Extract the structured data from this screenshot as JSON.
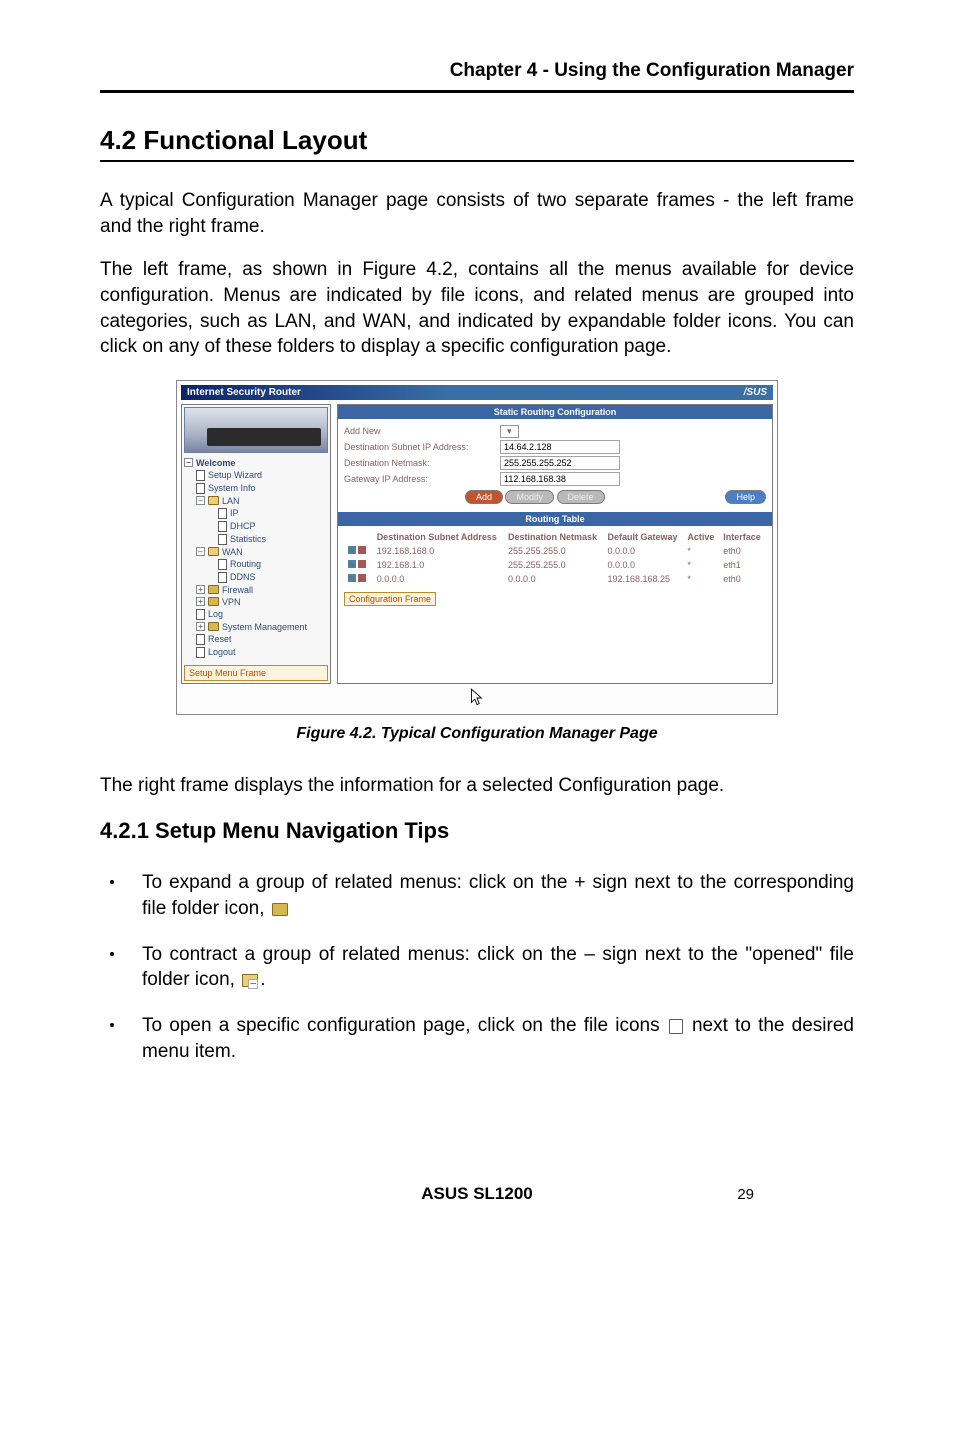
{
  "chapter_header": "Chapter 4 - Using the Configuration Manager",
  "section_title": "4.2 Functional Layout",
  "paragraph1": "A typical Configuration Manager page consists of two separate frames - the left frame and the right frame.",
  "paragraph2": "The left frame, as shown in Figure 4.2, contains all the menus available for device configuration. Menus are indicated by file icons, and related menus are grouped into categories, such as LAN, and WAN, and indicated by expandable folder icons. You can click on any of these folders to display a specific configuration page.",
  "figure": {
    "titlebar": "Internet Security Router",
    "brand": "/SUS",
    "left_tree": {
      "root": "Welcome",
      "items": [
        "Setup Wizard",
        "System Info",
        "LAN",
        "IP",
        "DHCP",
        "Statistics",
        "WAN",
        "Routing",
        "DDNS",
        "Firewall",
        "VPN",
        "Log",
        "System Management",
        "Reset",
        "Logout"
      ],
      "setup_frame_label": "Setup Menu Frame"
    },
    "right_panel": {
      "config_title": "Static Routing Configuration",
      "add_new": "Add New",
      "dest_subnet_label": "Destination Subnet IP Address:",
      "dest_subnet_value": "14.64.2.128",
      "dest_netmask_label": "Destination Netmask:",
      "dest_netmask_value": "255.255.255.252",
      "gateway_label": "Gateway IP Address:",
      "gateway_value": "112.168.168.38",
      "btn_add": "Add",
      "btn_modify": "Modify",
      "btn_delete": "Delete",
      "btn_help": "Help",
      "table_title": "Routing Table",
      "table_headers": [
        "Destination Subnet Address",
        "Destination Netmask",
        "Default Gateway",
        "Active",
        "Interface"
      ],
      "rows": [
        [
          "192.168.168.0",
          "255.255.255.0",
          "0.0.0.0",
          "*",
          "eth0"
        ],
        [
          "192.168.1.0",
          "255.255.255.0",
          "0.0.0.0",
          "*",
          "eth1"
        ],
        [
          "0.0.0.0",
          "0.0.0.0",
          "192.168.168.25",
          "*",
          "eth0"
        ]
      ],
      "callout": "Configuration Frame"
    }
  },
  "figure_caption": "Figure 4.2. Typical Configuration Manager Page",
  "paragraph3": "The right frame displays the information for a selected Configuration page.",
  "subsection_title": "4.2.1 Setup Menu Navigation Tips",
  "tip1_a": "To expand a group of related menus: click on the + sign next to the corresponding file folder icon, ",
  "tip2_a": "To contract a group of related menus: click on the – sign next to the \"opened\" file folder icon, ",
  "tip2_b": ".",
  "tip3_a": "To open a specific configuration page, click on the file icons ",
  "tip3_b": " next to the desired menu item.",
  "footer_product": "ASUS SL1200",
  "page_number": "29",
  "colors": {
    "titlebar_start": "#0a246a",
    "titlebar_end": "#3a6ea5",
    "panel_bar": "#3a66a5",
    "tree_text": "#2e4b7a",
    "folder": "#d6b651",
    "folder_border": "#8a6b1f",
    "callout_bg": "#fdf4e0",
    "callout_border": "#b98a2e",
    "callout_text": "#b25200"
  }
}
